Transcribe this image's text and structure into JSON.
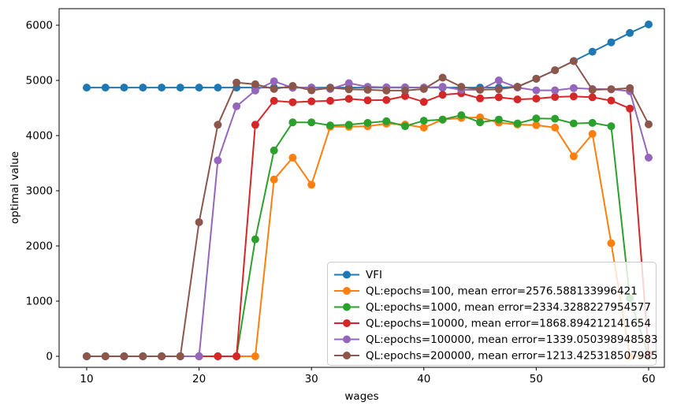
{
  "chart_data": {
    "type": "line",
    "title": "",
    "xlabel": "wages",
    "ylabel": "optimal value",
    "x_ticks": [
      10,
      20,
      30,
      40,
      50,
      60
    ],
    "y_ticks": [
      0,
      1000,
      2000,
      3000,
      4000,
      5000,
      6000
    ],
    "x_range": [
      10,
      60
    ],
    "y_range": [
      0,
      6000
    ],
    "grid": false,
    "legend_position": "lower right",
    "x": [
      10,
      11.67,
      13.33,
      15,
      16.67,
      18.33,
      20,
      21.67,
      23.33,
      25,
      26.67,
      28.33,
      30,
      31.67,
      33.33,
      35,
      36.67,
      38.33,
      40,
      41.67,
      43.33,
      45,
      46.67,
      48.33,
      50,
      51.67,
      53.33,
      55,
      56.67,
      58.33,
      60
    ],
    "series": [
      {
        "name": "VFI",
        "color": "#1f77b4",
        "values": [
          4870,
          4870,
          4870,
          4870,
          4870,
          4870,
          4870,
          4870,
          4870,
          4870,
          4870,
          4870,
          4870,
          4870,
          4870,
          4870,
          4870,
          4870,
          4870,
          4870,
          4870,
          4870,
          4870,
          4885,
          5030,
          5185,
          5350,
          5520,
          5690,
          5860,
          6015
        ]
      },
      {
        "name": "QL:epochs=100, mean error=2576.588133996421",
        "color": "#ff7f0e",
        "values": [
          0,
          0,
          0,
          0,
          0,
          0,
          0,
          0,
          0,
          0,
          3205,
          3600,
          3110,
          4160,
          4160,
          4170,
          4215,
          4200,
          4145,
          4290,
          4320,
          4330,
          4235,
          4200,
          4190,
          4145,
          3625,
          4030,
          2050,
          0,
          0
        ]
      },
      {
        "name": "QL:epochs=1000, mean error=2334.3288227954577",
        "color": "#2ca02c",
        "values": [
          0,
          0,
          0,
          0,
          0,
          0,
          0,
          0,
          0,
          2120,
          3730,
          4240,
          4240,
          4185,
          4195,
          4230,
          4260,
          4170,
          4270,
          4290,
          4370,
          4240,
          4290,
          4220,
          4310,
          4305,
          4220,
          4230,
          4170,
          1050,
          0
        ]
      },
      {
        "name": "QL:epochs=10000, mean error=1868.894212141654",
        "color": "#d62728",
        "values": [
          0,
          0,
          0,
          0,
          0,
          0,
          0,
          0,
          0,
          4195,
          4630,
          4605,
          4620,
          4630,
          4665,
          4640,
          4645,
          4715,
          4610,
          4740,
          4765,
          4675,
          4695,
          4655,
          4670,
          4700,
          4710,
          4695,
          4635,
          4490,
          40
        ]
      },
      {
        "name": "QL:epochs=100000, mean error=1339.050398948583",
        "color": "#9467bd",
        "values": [
          0,
          0,
          0,
          0,
          0,
          0,
          0,
          3550,
          4530,
          4815,
          4985,
          4865,
          4870,
          4845,
          4950,
          4885,
          4875,
          4875,
          4870,
          4885,
          4830,
          4830,
          5000,
          4870,
          4820,
          4820,
          4860,
          4845,
          4840,
          4805,
          3600
        ]
      },
      {
        "name": "QL:epochs=200000, mean error=1213.425318507985",
        "color": "#8c564b",
        "values": [
          0,
          0,
          0,
          0,
          0,
          0,
          2430,
          4195,
          4960,
          4930,
          4845,
          4900,
          4820,
          4865,
          4840,
          4830,
          4815,
          4815,
          4845,
          5050,
          4885,
          4830,
          4840,
          4885,
          5030,
          5185,
          5350,
          4830,
          4840,
          4860,
          4205
        ]
      }
    ]
  }
}
